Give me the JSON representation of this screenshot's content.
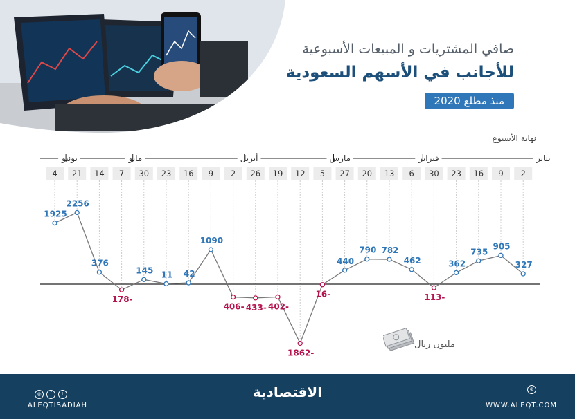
{
  "header": {
    "title_line1": "صافي المشتريات و المبيعات الأسبوعية",
    "title_line2": "للأجانب في الأسهم السعودية",
    "badge": "منذ مطلع 2020",
    "week_end_label": "نهاية الأسبوع"
  },
  "chart_data": {
    "type": "line",
    "months": [
      {
        "name": "يونيو",
        "weeks": 1
      },
      {
        "name": "مايو",
        "weeks": 3
      },
      {
        "name": "أبريل",
        "weeks": 5
      },
      {
        "name": "مارس",
        "weeks": 4
      },
      {
        "name": "فبراير",
        "weeks": 4
      },
      {
        "name": "يناير",
        "weeks": 5
      }
    ],
    "x": [
      "4",
      "21",
      "14",
      "7",
      "30",
      "23",
      "16",
      "9",
      "2",
      "26",
      "19",
      "12",
      "5",
      "27",
      "20",
      "13",
      "6",
      "30",
      "23",
      "16",
      "9",
      "2"
    ],
    "values": [
      1925,
      2256,
      376,
      -178,
      145,
      11,
      42,
      1090,
      -406,
      -433,
      -402,
      -1862,
      -16,
      440,
      790,
      782,
      462,
      -113,
      362,
      735,
      905,
      327
    ],
    "labels": [
      "1925",
      "2256",
      "376",
      "178-",
      "145",
      "11",
      "42",
      "1090",
      "406-",
      "433-",
      "402-",
      "1862-",
      "16-",
      "440",
      "790",
      "782",
      "462",
      "113-",
      "362",
      "735",
      "905",
      "327"
    ],
    "unit": "مليون ريال",
    "colors": {
      "positive": "#2f77b8",
      "negative": "#b5144e",
      "line": "#7a7a7a",
      "axis": "#222222",
      "guide": "#cccccc"
    }
  },
  "footer": {
    "brand": "الاقتصادية",
    "website": "WWW.ALEQT.COM",
    "handle": "ALEQTISADIAH",
    "background": "#16405f"
  }
}
